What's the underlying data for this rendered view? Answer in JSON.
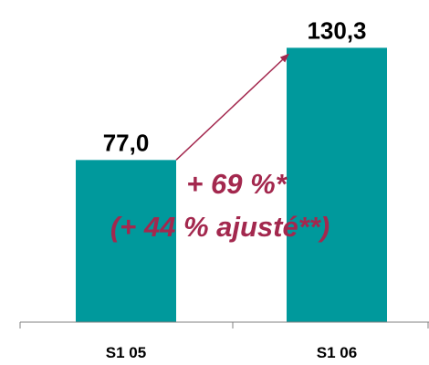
{
  "chart_data": {
    "type": "bar",
    "categories": [
      "S1 05",
      "S1 06"
    ],
    "values": [
      77.0,
      130.3
    ],
    "value_labels": [
      "77,0",
      "130,3"
    ],
    "ylim": [
      0,
      140
    ],
    "grid": false,
    "legend": "none",
    "annotation": {
      "line1": "+ 69 %*",
      "line2": "(+ 44 % ajusté**)"
    },
    "arrow": {
      "from": "S1 05",
      "to": "S1 06"
    }
  },
  "colors": {
    "bar": "#00999c",
    "annotation": "#a3284e",
    "axis": "#808080",
    "text": "#000000"
  }
}
